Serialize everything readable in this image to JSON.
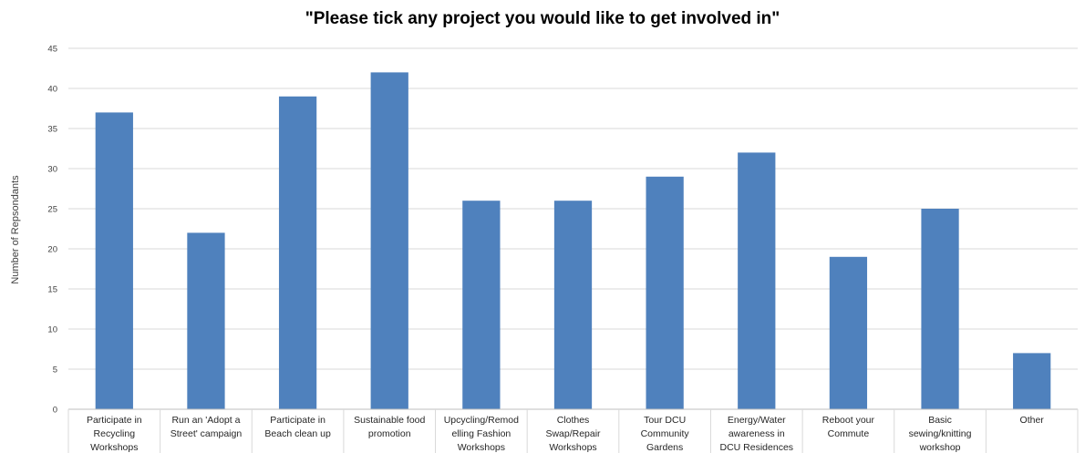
{
  "chart_data": {
    "type": "bar",
    "title": "\"Please tick any project you would like to get involved in\"",
    "xlabel": "",
    "ylabel": "Number of Repsondants",
    "ylim": [
      0,
      45
    ],
    "ytick_step": 5,
    "yticks": [
      "0",
      "5",
      "10",
      "15",
      "20",
      "25",
      "30",
      "35",
      "40",
      "45"
    ],
    "grid": true,
    "legend": "none",
    "bar_color": "#4f81bd",
    "categories": [
      [
        "Participate in",
        "Recycling",
        "Workshops"
      ],
      [
        "Run an 'Adopt a",
        "Street' campaign"
      ],
      [
        "Participate in",
        "Beach clean up"
      ],
      [
        "Sustainable food",
        "promotion"
      ],
      [
        "Upcycling/Remod",
        "elling Fashion",
        "Workshops"
      ],
      [
        "Clothes",
        "Swap/Repair",
        "Workshops"
      ],
      [
        "Tour DCU",
        "Community",
        "Gardens"
      ],
      [
        "Energy/Water",
        "awareness in",
        "DCU Residences"
      ],
      [
        "Reboot your",
        "Commute"
      ],
      [
        "Basic",
        "sewing/knitting",
        "workshop"
      ],
      [
        "Other"
      ]
    ],
    "values": [
      37,
      22,
      39,
      42,
      26,
      26,
      29,
      32,
      19,
      25,
      7
    ]
  }
}
